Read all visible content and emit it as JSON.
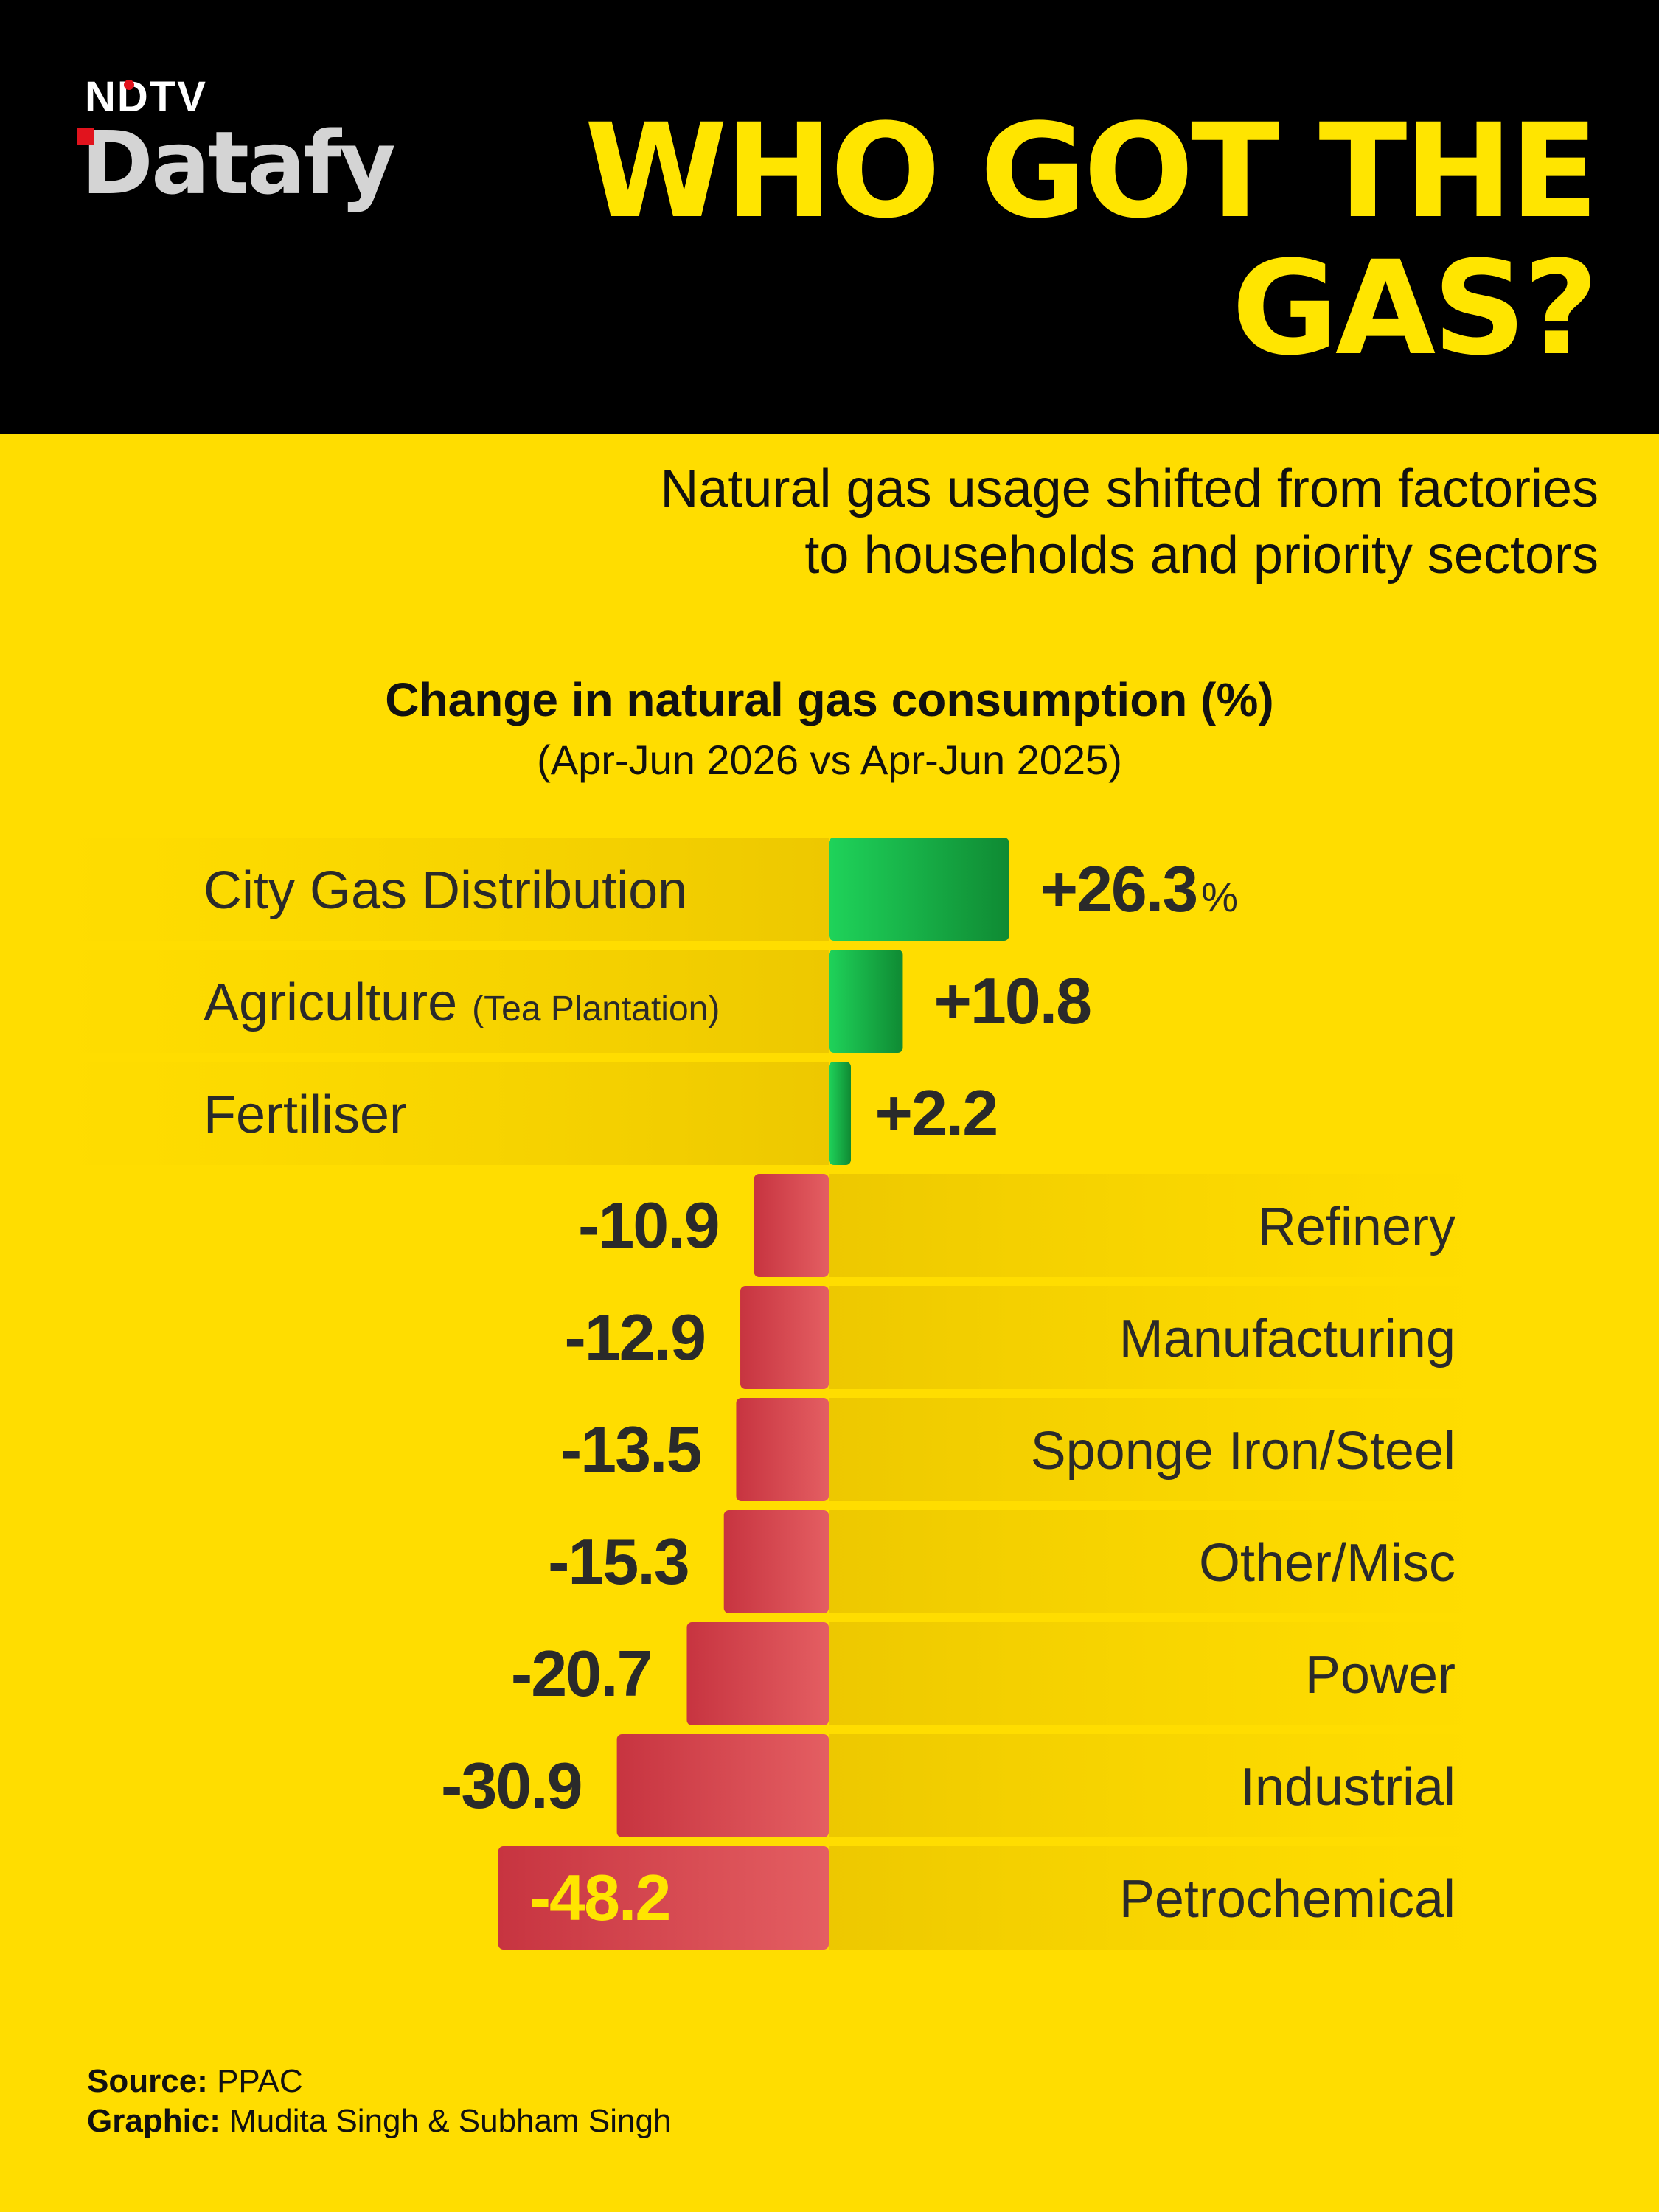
{
  "brand": {
    "top": "NDTV",
    "bottom": "Datafy"
  },
  "title": "WHO GOT THE GAS?",
  "subtitle": "Natural gas usage shifted from factories\nto households and priority sectors",
  "colors": {
    "background": "#FFDD00",
    "header": "#000000",
    "title": "#FFE500",
    "positive": "#1FC94A",
    "negative": "#D6404A"
  },
  "chart_data": {
    "type": "bar",
    "orientation": "horizontal-diverging",
    "title": "Change in natural gas consumption (%)",
    "subtitle": "(Apr-Jun 2026 vs Apr-Jun 2025)",
    "unit": "%",
    "categories": [
      "City Gas Distribution",
      "Agriculture",
      "Fertiliser",
      "Refinery",
      "Manufacturing",
      "Sponge Iron/Steel",
      "Other/Misc",
      "Power",
      "Industrial",
      "Petrochemical"
    ],
    "category_notes": [
      "",
      "(Tea Plantation)",
      "",
      "",
      "",
      "",
      "",
      "",
      "",
      ""
    ],
    "values": [
      26.3,
      10.8,
      2.2,
      -10.9,
      -12.9,
      -13.5,
      -15.3,
      -20.7,
      -30.9,
      -48.2
    ],
    "value_labels": [
      "+26.3",
      "+10.8",
      "+2.2",
      "-10.9",
      "-12.9",
      "-13.5",
      "-15.3",
      "-20.7",
      "-30.9",
      "-48.2"
    ],
    "first_label_suffix": "%",
    "xlim": [
      -48.2,
      26.3
    ],
    "grid": false,
    "legend": "none"
  },
  "footer": {
    "source_label": "Source:",
    "source_value": "PPAC",
    "graphic_label": "Graphic:",
    "graphic_value": "Mudita Singh & Subham Singh"
  }
}
